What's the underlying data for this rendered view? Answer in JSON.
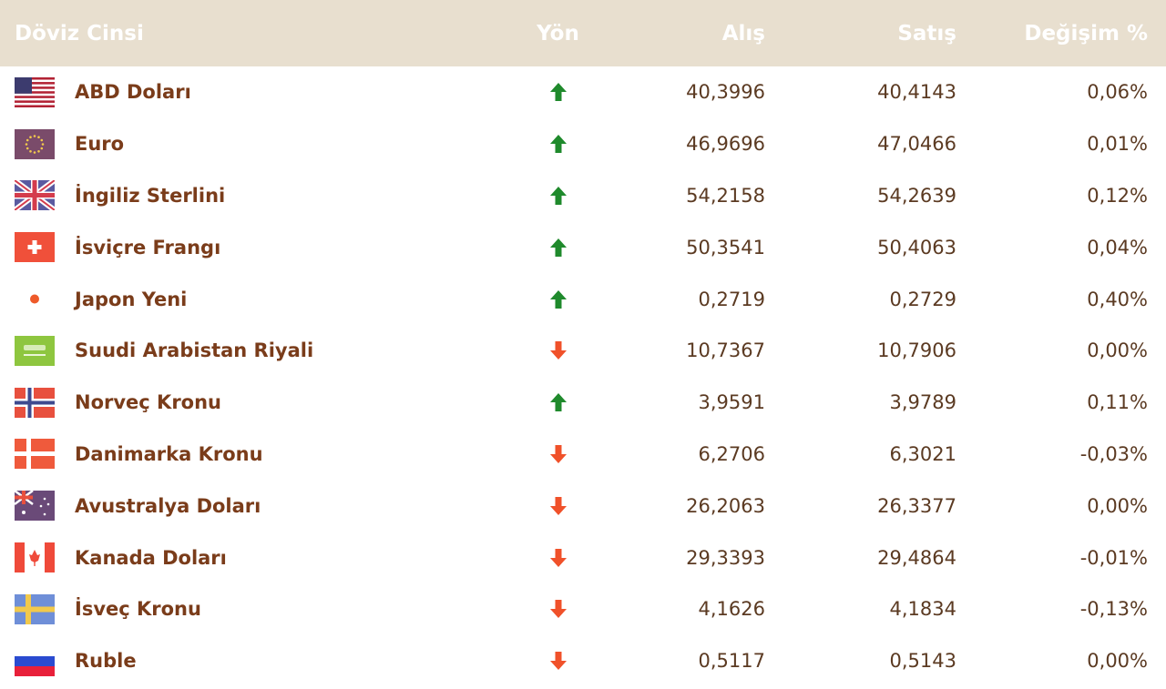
{
  "header": {
    "currency": "Döviz Cinsi",
    "direction": "Yön",
    "buy": "Alış",
    "sell": "Satış",
    "change": "Değişim %"
  },
  "colors": {
    "up": "#1f8a2c",
    "down": "#f0512a",
    "header_bg": "#e8dfcf",
    "name": "#7a3c1a"
  },
  "rows": [
    {
      "name": "ABD Doları",
      "flag": "us-flag-icon",
      "dir": "up",
      "buy": "40,3996",
      "sell": "40,4143",
      "change": "0,06%"
    },
    {
      "name": "Euro",
      "flag": "eu-flag-icon",
      "dir": "up",
      "buy": "46,9696",
      "sell": "47,0466",
      "change": "0,01%"
    },
    {
      "name": "İngiliz Sterlini",
      "flag": "uk-flag-icon",
      "dir": "up",
      "buy": "54,2158",
      "sell": "54,2639",
      "change": "0,12%"
    },
    {
      "name": "İsviçre Frangı",
      "flag": "ch-flag-icon",
      "dir": "up",
      "buy": "50,3541",
      "sell": "50,4063",
      "change": "0,04%"
    },
    {
      "name": "Japon Yeni",
      "flag": "jp-flag-icon",
      "dir": "up",
      "buy": "0,2719",
      "sell": "0,2729",
      "change": "0,40%"
    },
    {
      "name": "Suudi Arabistan Riyali",
      "flag": "sa-flag-icon",
      "dir": "down",
      "buy": "10,7367",
      "sell": "10,7906",
      "change": "0,00%"
    },
    {
      "name": "Norveç Kronu",
      "flag": "no-flag-icon",
      "dir": "up",
      "buy": "3,9591",
      "sell": "3,9789",
      "change": "0,11%"
    },
    {
      "name": "Danimarka Kronu",
      "flag": "dk-flag-icon",
      "dir": "down",
      "buy": "6,2706",
      "sell": "6,3021",
      "change": "-0,03%"
    },
    {
      "name": "Avustralya Doları",
      "flag": "au-flag-icon",
      "dir": "down",
      "buy": "26,2063",
      "sell": "26,3377",
      "change": "0,00%"
    },
    {
      "name": "Kanada Doları",
      "flag": "ca-flag-icon",
      "dir": "down",
      "buy": "29,3393",
      "sell": "29,4864",
      "change": "-0,01%"
    },
    {
      "name": "İsveç Kronu",
      "flag": "se-flag-icon",
      "dir": "down",
      "buy": "4,1626",
      "sell": "4,1834",
      "change": "-0,13%"
    },
    {
      "name": "Ruble",
      "flag": "ru-flag-icon",
      "dir": "down",
      "buy": "0,5117",
      "sell": "0,5143",
      "change": "0,00%"
    }
  ]
}
